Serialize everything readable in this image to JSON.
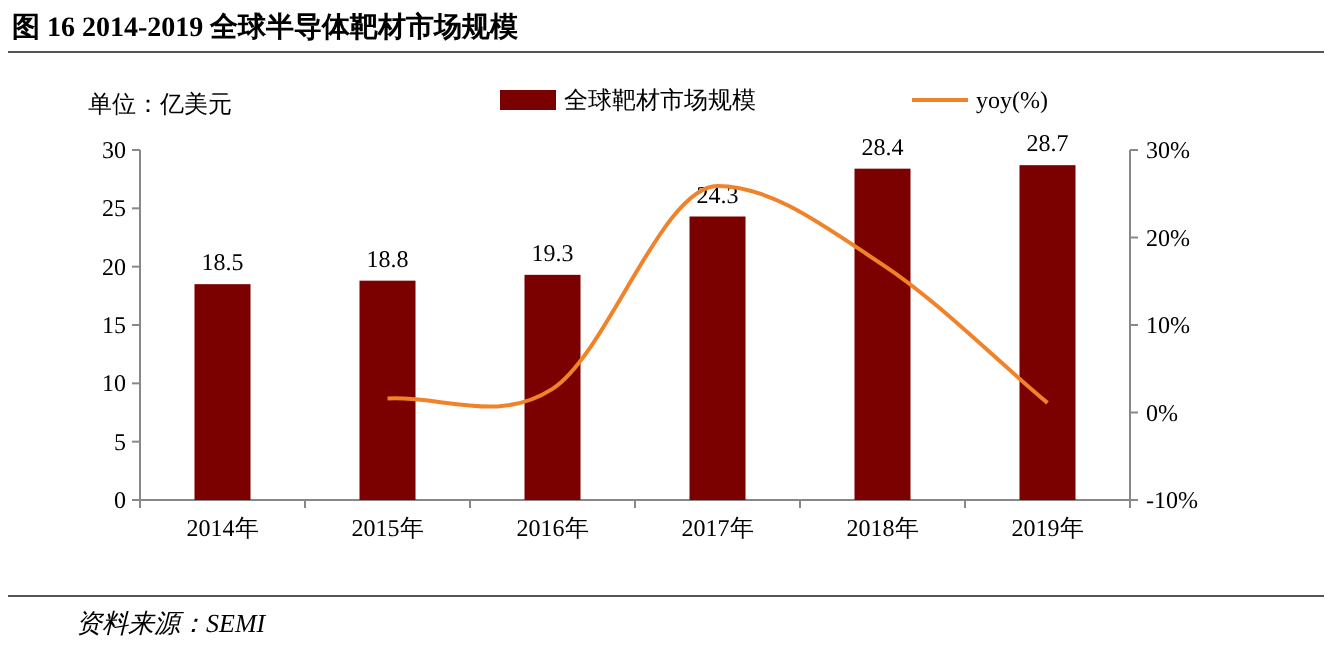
{
  "chart_data": {
    "type": "bar",
    "title": "图 16 2014-2019 全球半导体靶材市场规模",
    "annotations": [
      "单位：亿美元",
      "资料来源：SEMI"
    ],
    "categories": [
      "2014年",
      "2015年",
      "2016年",
      "2017年",
      "2018年",
      "2019年"
    ],
    "series": [
      {
        "name": "全球靶材市场规模",
        "color": "#7b0000",
        "values": [
          18.5,
          18.8,
          19.3,
          24.3,
          28.4,
          28.7
        ],
        "value_labels": [
          "18.5",
          "18.8",
          "19.3",
          "24.3",
          "28.4",
          "28.7"
        ]
      },
      {
        "name": "yoy(%)",
        "type": "line",
        "axis": "y2",
        "color": "#f0822a",
        "values": [
          null,
          1.6,
          2.7,
          25.9,
          16.9,
          1.1
        ]
      }
    ],
    "ylim": [
      0,
      30
    ],
    "yticks": [
      0,
      5,
      10,
      15,
      20,
      25,
      30
    ],
    "y2lim": [
      -10,
      30
    ],
    "y2ticks": [
      {
        "value": -10,
        "label": "-10%"
      },
      {
        "value": 0,
        "label": "0%"
      },
      {
        "value": 10,
        "label": "10%"
      },
      {
        "value": 20,
        "label": "20%"
      },
      {
        "value": 30,
        "label": "30%"
      }
    ],
    "legend": "top",
    "grid": false
  }
}
